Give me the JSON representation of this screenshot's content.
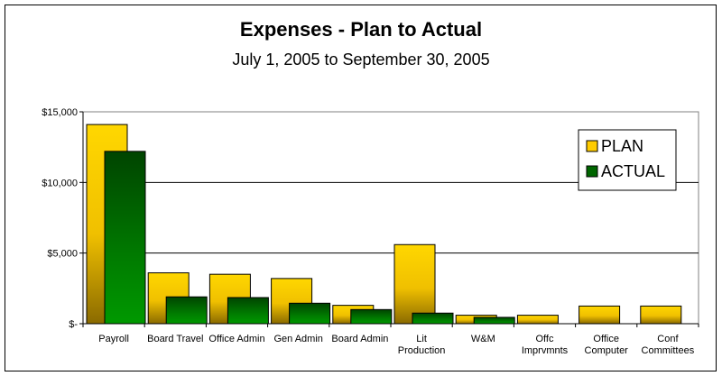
{
  "chart_data": {
    "type": "bar",
    "title": "Expenses - Plan to Actual",
    "subtitle": "July 1, 2005 to September 30, 2005",
    "categories": [
      [
        "Payroll"
      ],
      [
        "Board Travel"
      ],
      [
        "Office Admin"
      ],
      [
        "Gen Admin"
      ],
      [
        "Board Admin"
      ],
      [
        "Lit",
        "Production"
      ],
      [
        "W&M"
      ],
      [
        "Offc",
        "Imprvmnts"
      ],
      [
        "Office",
        "Computer"
      ],
      [
        "Conf",
        "Committees"
      ]
    ],
    "series": [
      {
        "name": "PLAN",
        "color": "#ffcc00",
        "values": [
          14100,
          3600,
          3500,
          3200,
          1300,
          5600,
          600,
          600,
          1250,
          1250
        ]
      },
      {
        "name": "ACTUAL",
        "color": "#006600",
        "values": [
          12200,
          1900,
          1850,
          1450,
          1000,
          750,
          450,
          0,
          0,
          0
        ]
      }
    ],
    "ylim": [
      0,
      15000
    ],
    "yticks": [
      {
        "value": 0,
        "label": "$-"
      },
      {
        "value": 5000,
        "label": "$5,000"
      },
      {
        "value": 10000,
        "label": "$10,000"
      },
      {
        "value": 15000,
        "label": "$15,000"
      }
    ],
    "grid": true,
    "legend_position": "right"
  }
}
